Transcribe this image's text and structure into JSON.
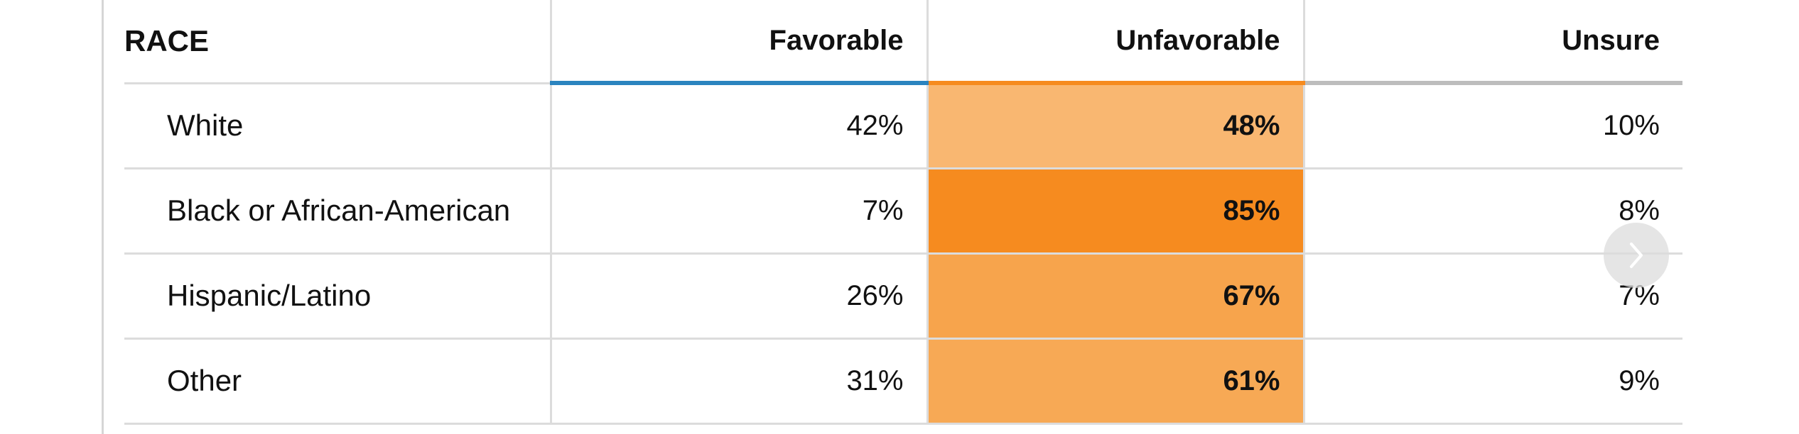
{
  "table": {
    "header": {
      "group_label": "RACE",
      "columns": [
        "Favorable",
        "Unfavorable",
        "Unsure"
      ]
    },
    "rows": [
      {
        "label": "White",
        "favorable": "42%",
        "unfavorable": "48%",
        "unsure": "10%",
        "unfavorable_shade": "#f9b771"
      },
      {
        "label": "Black or African-American",
        "favorable": "7%",
        "unfavorable": "85%",
        "unsure": "8%",
        "unfavorable_shade": "#f68b1f"
      },
      {
        "label": "Hispanic/Latino",
        "favorable": "26%",
        "unfavorable": "67%",
        "unsure": "7%",
        "unfavorable_shade": "#f7a44c"
      },
      {
        "label": "Other",
        "favorable": "31%",
        "unfavorable": "61%",
        "unsure": "9%",
        "unfavorable_shade": "#f7a955"
      }
    ],
    "colors": {
      "favorable_accent": "#2b84bf",
      "unfavorable_accent": "#f68b1f",
      "unsure_accent": "#bdbdbd"
    }
  },
  "controls": {
    "next_icon": "chevron-right-icon"
  }
}
